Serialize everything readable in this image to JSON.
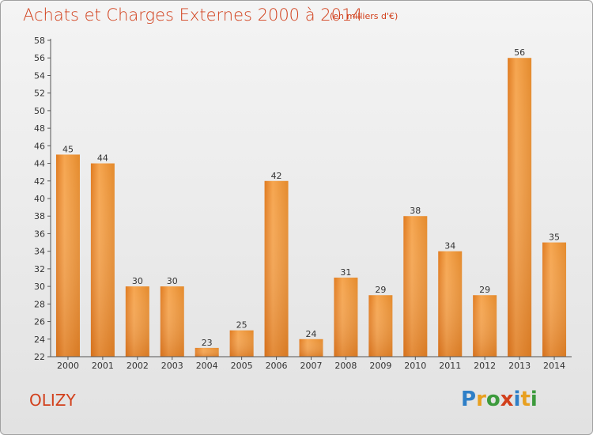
{
  "header": {
    "title": "Achats et Charges Externes 2000 à 2014",
    "subtitle": "(en milliers d'€)"
  },
  "footer": {
    "commune": "OLIZY",
    "logo_letters": [
      "P",
      "r",
      "o",
      "x",
      "i",
      "t",
      "i"
    ],
    "logo_colors": [
      "#2e7fc7",
      "#e8a020",
      "#3c9a3c",
      "#d2401c",
      "#2e7fc7",
      "#e8a020",
      "#3c9a3c"
    ]
  },
  "colors": {
    "bar_light": "#f6a650",
    "bar_dark": "#d4701a",
    "title": "#d2401c"
  },
  "chart_data": {
    "type": "bar",
    "title": "Achats et Charges Externes 2000 à 2014",
    "subtitle": "(en milliers d'€)",
    "categories": [
      "2000",
      "2001",
      "2002",
      "2003",
      "2004",
      "2005",
      "2006",
      "2007",
      "2008",
      "2009",
      "2010",
      "2011",
      "2012",
      "2013",
      "2014"
    ],
    "values": [
      45,
      44,
      30,
      30,
      23,
      25,
      42,
      24,
      31,
      29,
      38,
      34,
      29,
      56,
      35
    ],
    "ylim": [
      22,
      58
    ],
    "yticks": [
      22,
      24,
      26,
      28,
      30,
      32,
      34,
      36,
      38,
      40,
      42,
      44,
      46,
      48,
      50,
      52,
      54,
      56,
      58
    ],
    "grid": false,
    "legend": "none"
  }
}
